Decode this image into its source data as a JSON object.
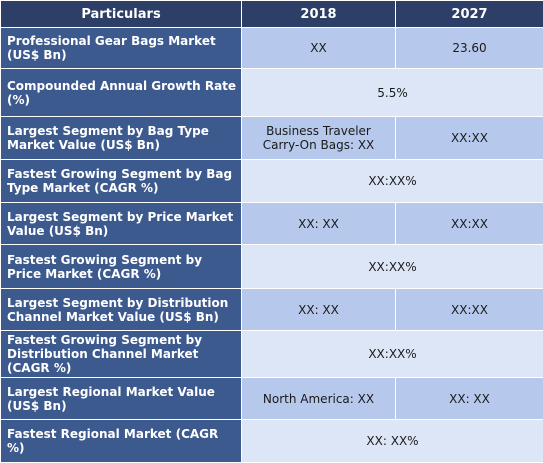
{
  "header": {
    "col_particulars": "Particulars",
    "col_2018": "2018",
    "col_2027": "2027"
  },
  "rows": [
    {
      "label": "Professional Gear Bags Market (US$ Bn)",
      "v2018": "XX",
      "v2027": "23.60"
    },
    {
      "label": "Compounded Annual Growth Rate (%)",
      "merged": "5.5%"
    },
    {
      "label": "Largest Segment by Bag Type Market Value (US$ Bn)",
      "v2018": "Business Traveler Carry-On Bags: XX",
      "v2027": "XX:XX"
    },
    {
      "label": "Fastest Growing Segment by Bag Type Market (CAGR %)",
      "merged": "XX:XX%"
    },
    {
      "label": "Largest Segment by Price Market Value (US$ Bn)",
      "v2018": "XX: XX",
      "v2027": "XX:XX"
    },
    {
      "label": "Fastest Growing Segment by Price Market (CAGR %)",
      "merged": "XX:XX%"
    },
    {
      "label": "Largest Segment by Distribution Channel Market Value (US$ Bn)",
      "v2018": "XX: XX",
      "v2027": "XX:XX"
    },
    {
      "label": "Fastest Growing Segment by Distribution Channel Market (CAGR %)",
      "merged": "XX:XX%"
    },
    {
      "label": "Largest Regional Market Value (US$ Bn)",
      "v2018": "North America: XX",
      "v2027": "XX: XX"
    },
    {
      "label": "Fastest Regional Market (CAGR %)",
      "merged": "XX: XX%"
    }
  ]
}
